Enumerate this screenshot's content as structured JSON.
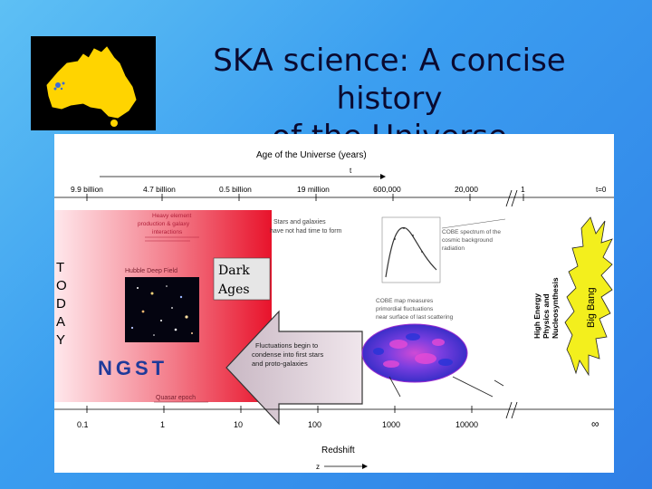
{
  "slide": {
    "title_line1": "SKA science: A concise history",
    "title_line2": "of the Universe"
  },
  "figure": {
    "top_axis": {
      "title": "Age of the Universe (years)",
      "variable": "t",
      "ticks": [
        "9.9 billion",
        "4.7 billion",
        "0.5 billion",
        "19 million",
        "600,000",
        "20,000",
        "1",
        "t=0"
      ]
    },
    "bottom_axis": {
      "title": "Redshift",
      "variable": "z",
      "ticks": [
        "0.1",
        "1",
        "10",
        "100",
        "1000",
        "10000",
        "∞"
      ]
    },
    "today_letters": [
      "T",
      "O",
      "D",
      "A",
      "Y"
    ],
    "annotations": {
      "red_box_text": [
        "Hubble Deep Field"
      ],
      "top_left_text": [
        "Heavy element",
        "production & galaxy",
        "interactions"
      ],
      "stars_text": [
        "Stars and galaxies",
        "have not had time to form"
      ],
      "cmb_spectrum_text": [
        "COBE spectrum of the",
        "cosmic background",
        "radiation"
      ],
      "cobe_map_text": [
        "COBE map measures",
        "primordial fluctuations",
        "near surface of last scattering"
      ],
      "arrow_text": [
        "Fluctuations begin to",
        "condense into first stars",
        "and proto-galaxies"
      ],
      "quasar_epoch": "Quasar epoch",
      "dark_ages_line1": "Dark",
      "dark_ages_line2": "Ages",
      "ngst": "NGST",
      "vertical_physics": [
        "High Energy",
        "Physics and",
        "Nucleosynthesis"
      ],
      "big_bang": "Big Bang"
    }
  },
  "colors": {
    "accent_red": "#e8132b",
    "dark_ages_box": "#e6e6e6",
    "ngst_blue": "#1f3a9a",
    "big_bang_yellow": "#f3ef1d"
  }
}
